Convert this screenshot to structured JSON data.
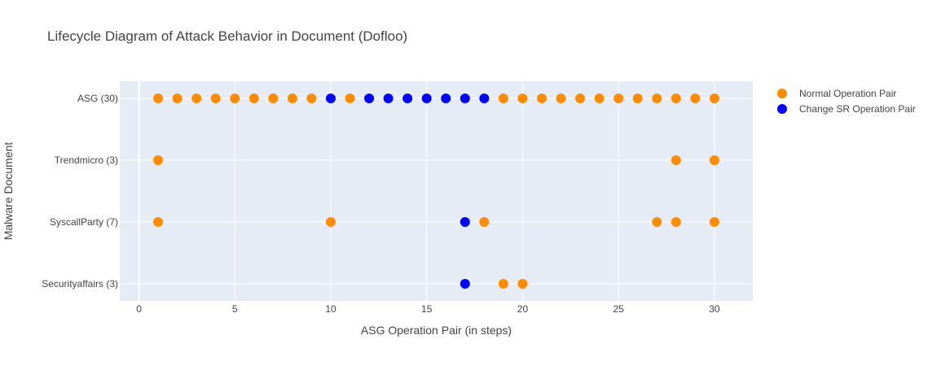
{
  "chart_data": {
    "type": "scatter",
    "title": "Lifecycle Diagram of Attack Behavior in Document (Dofloo)",
    "xlabel": "ASG Operation Pair (in steps)",
    "ylabel": "Malware Document",
    "xlim": [
      -1,
      32
    ],
    "x_ticks": [
      0,
      5,
      10,
      15,
      20,
      25,
      30
    ],
    "categories": [
      "ASG (30)",
      "Trendmicro (3)",
      "SyscallParty (7)",
      "Securityaffairs (3)"
    ],
    "grid": true,
    "legend_position": "top-right",
    "series": [
      {
        "name": "Normal Operation Pair",
        "color": "#ff8c00",
        "points": [
          {
            "x": 1,
            "y": "ASG (30)"
          },
          {
            "x": 2,
            "y": "ASG (30)"
          },
          {
            "x": 3,
            "y": "ASG (30)"
          },
          {
            "x": 4,
            "y": "ASG (30)"
          },
          {
            "x": 5,
            "y": "ASG (30)"
          },
          {
            "x": 6,
            "y": "ASG (30)"
          },
          {
            "x": 7,
            "y": "ASG (30)"
          },
          {
            "x": 8,
            "y": "ASG (30)"
          },
          {
            "x": 9,
            "y": "ASG (30)"
          },
          {
            "x": 11,
            "y": "ASG (30)"
          },
          {
            "x": 19,
            "y": "ASG (30)"
          },
          {
            "x": 20,
            "y": "ASG (30)"
          },
          {
            "x": 21,
            "y": "ASG (30)"
          },
          {
            "x": 22,
            "y": "ASG (30)"
          },
          {
            "x": 23,
            "y": "ASG (30)"
          },
          {
            "x": 24,
            "y": "ASG (30)"
          },
          {
            "x": 25,
            "y": "ASG (30)"
          },
          {
            "x": 26,
            "y": "ASG (30)"
          },
          {
            "x": 27,
            "y": "ASG (30)"
          },
          {
            "x": 28,
            "y": "ASG (30)"
          },
          {
            "x": 29,
            "y": "ASG (30)"
          },
          {
            "x": 30,
            "y": "ASG (30)"
          },
          {
            "x": 1,
            "y": "Trendmicro (3)"
          },
          {
            "x": 28,
            "y": "Trendmicro (3)"
          },
          {
            "x": 30,
            "y": "Trendmicro (3)"
          },
          {
            "x": 1,
            "y": "SyscallParty (7)"
          },
          {
            "x": 10,
            "y": "SyscallParty (7)"
          },
          {
            "x": 18,
            "y": "SyscallParty (7)"
          },
          {
            "x": 27,
            "y": "SyscallParty (7)"
          },
          {
            "x": 28,
            "y": "SyscallParty (7)"
          },
          {
            "x": 30,
            "y": "SyscallParty (7)"
          },
          {
            "x": 19,
            "y": "Securityaffairs (3)"
          },
          {
            "x": 20,
            "y": "Securityaffairs (3)"
          }
        ]
      },
      {
        "name": "Change SR Operation Pair",
        "color": "#0000ff",
        "points": [
          {
            "x": 10,
            "y": "ASG (30)"
          },
          {
            "x": 12,
            "y": "ASG (30)"
          },
          {
            "x": 13,
            "y": "ASG (30)"
          },
          {
            "x": 14,
            "y": "ASG (30)"
          },
          {
            "x": 15,
            "y": "ASG (30)"
          },
          {
            "x": 16,
            "y": "ASG (30)"
          },
          {
            "x": 17,
            "y": "ASG (30)"
          },
          {
            "x": 18,
            "y": "ASG (30)"
          },
          {
            "x": 17,
            "y": "SyscallParty (7)"
          },
          {
            "x": 17,
            "y": "Securityaffairs (3)"
          }
        ]
      }
    ]
  }
}
